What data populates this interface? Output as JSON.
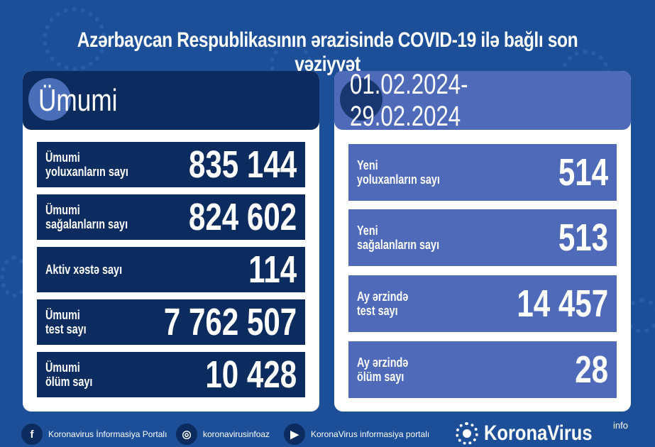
{
  "title": "Azərbaycan Respublikasının ərazisində COVID-19 ilə bağlı son vəziyyət",
  "left": {
    "header": "Ümumi",
    "rows": [
      {
        "label1": "Ümumi",
        "label2": "yoluxanların sayı",
        "value": "835 144"
      },
      {
        "label1": "Ümumi",
        "label2": "sağalanların sayı",
        "value": "824 602"
      },
      {
        "label1": "Aktiv xəstə sayı",
        "label2": "",
        "value": "114"
      },
      {
        "label1": "Ümumi",
        "label2": "test sayı",
        "value": "7 762 507"
      },
      {
        "label1": "Ümumi",
        "label2": "ölüm sayı",
        "value": "10 428"
      }
    ]
  },
  "right": {
    "header": "01.02.2024-29.02.2024",
    "rows": [
      {
        "label1": "Yeni",
        "label2": "yoluxanların sayı",
        "value": "514"
      },
      {
        "label1": "Yeni",
        "label2": "sağalanların sayı",
        "value": "513"
      },
      {
        "label1": "Ay ərzində",
        "label2": "test sayı",
        "value": "14 457"
      },
      {
        "label1": "Ay ərzində",
        "label2": "ölüm sayı",
        "value": "28"
      }
    ]
  },
  "footer": {
    "facebook": "Koronavirus İnformasiya Portalı",
    "instagram": "koronavirusinfoaz",
    "youtube": "KoronaVirus informasiya portalı",
    "brand": "KoronaVirus",
    "brand_sup": "info"
  },
  "colors": {
    "background": "#1c4f98",
    "navy": "#0c2b5e",
    "accent": "#4e6ab9"
  }
}
